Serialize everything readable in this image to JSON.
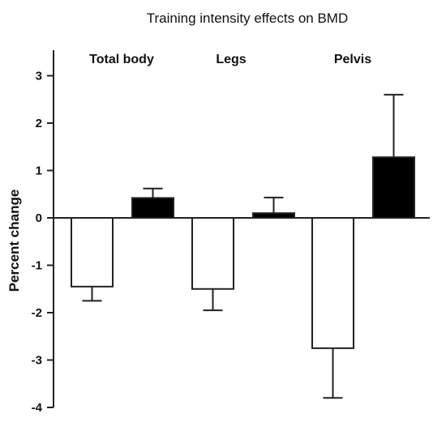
{
  "chart_data": {
    "type": "bar",
    "title": "Training intensity effects on BMD",
    "ylabel": "Percent change",
    "xlabel": "",
    "ylim": [
      -4,
      3.5
    ],
    "yticks": [
      3,
      2,
      1,
      0,
      -1,
      -2,
      -3,
      -4
    ],
    "ytick_labels": [
      "3",
      "2",
      "1",
      "0",
      "-1",
      "-2",
      "-3",
      "-4"
    ],
    "categories": [
      "Total body",
      "Legs",
      "Pelvis"
    ],
    "grid": false,
    "series": [
      {
        "fill": "#ffffff",
        "values": [
          -1.45,
          -1.5,
          -2.75
        ],
        "errors": [
          0.3,
          0.45,
          1.05
        ]
      },
      {
        "fill": "#000000",
        "values": [
          0.42,
          0.1,
          1.28
        ],
        "errors": [
          0.2,
          0.33,
          1.32
        ]
      }
    ]
  }
}
